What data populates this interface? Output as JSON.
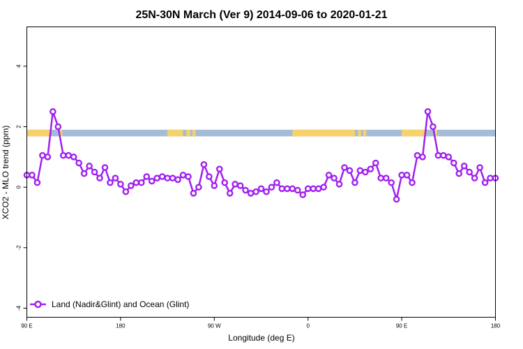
{
  "chart_data": {
    "type": "line",
    "title": "25N-30N March (Ver 9)   2014-09-06 to 2020-01-21",
    "xlabel": "Longitude (deg E)",
    "ylabel": "XCO2 - MLO trend (ppm)",
    "xlim": [
      90,
      540
    ],
    "ylim": [
      -4.3,
      5.3
    ],
    "x_ticks": [
      {
        "value": 90,
        "label": "90 E"
      },
      {
        "value": 180,
        "label": "180"
      },
      {
        "value": 270,
        "label": "90 W"
      },
      {
        "value": 360,
        "label": "0"
      },
      {
        "value": 450,
        "label": "90 E"
      },
      {
        "value": 540,
        "label": "180"
      }
    ],
    "y_ticks": [
      {
        "value": -4,
        "label": "-4"
      },
      {
        "value": -2,
        "label": "-2"
      },
      {
        "value": 0,
        "label": "0"
      },
      {
        "value": 2,
        "label": "2"
      },
      {
        "value": 4,
        "label": "4"
      }
    ],
    "legend_position": "bottom-left",
    "series": [
      {
        "name": "Land (Nadir&Glint) and Ocean (Glint)",
        "color": "#a020f0",
        "x": [
          90,
          95,
          100,
          105,
          110,
          115,
          120,
          125,
          130,
          135,
          140,
          145,
          150,
          155,
          160,
          165,
          170,
          175,
          180,
          185,
          190,
          195,
          200,
          205,
          210,
          215,
          220,
          225,
          230,
          235,
          240,
          245,
          250,
          255,
          260,
          265,
          270,
          275,
          280,
          285,
          290,
          295,
          300,
          305,
          310,
          315,
          320,
          325,
          330,
          335,
          340,
          345,
          350,
          355,
          360,
          365,
          370,
          375,
          380,
          385,
          390,
          395,
          400,
          405,
          410,
          415,
          420,
          425,
          430,
          435,
          440,
          445,
          450,
          455,
          460,
          465,
          470,
          475,
          480,
          485,
          490,
          495,
          500,
          505,
          510,
          515,
          520,
          525,
          530,
          535,
          540
        ],
        "values": [
          0.4,
          0.4,
          0.15,
          1.05,
          1.0,
          2.5,
          2.0,
          1.05,
          1.05,
          1.0,
          0.8,
          0.45,
          0.7,
          0.5,
          0.3,
          0.65,
          0.15,
          0.3,
          0.1,
          -0.15,
          0.05,
          0.15,
          0.15,
          0.35,
          0.2,
          0.3,
          0.35,
          0.3,
          0.3,
          0.25,
          0.4,
          0.35,
          -0.2,
          0.0,
          0.75,
          0.35,
          0.05,
          0.6,
          0.15,
          -0.2,
          0.1,
          0.05,
          -0.1,
          -0.2,
          -0.15,
          -0.05,
          -0.15,
          0.0,
          0.15,
          -0.05,
          -0.05,
          -0.05,
          -0.1,
          -0.25,
          -0.05,
          -0.05,
          -0.05,
          0.0,
          0.4,
          0.3,
          0.1,
          0.65,
          0.55,
          0.15,
          0.55,
          0.5,
          0.6,
          0.8,
          0.3,
          0.3,
          0.15,
          -0.4,
          0.4,
          0.4,
          0.15,
          1.05,
          1.0,
          2.5,
          2.0,
          1.05,
          1.05,
          1.0,
          0.8,
          0.45,
          0.7,
          0.5,
          0.3,
          0.65,
          0.15,
          0.3,
          0.3
        ]
      }
    ],
    "map_strip": {
      "y_range": [
        1.68,
        1.9
      ],
      "ocean_color": "#a5bcd9",
      "land_color": "#f5d26c"
    }
  }
}
